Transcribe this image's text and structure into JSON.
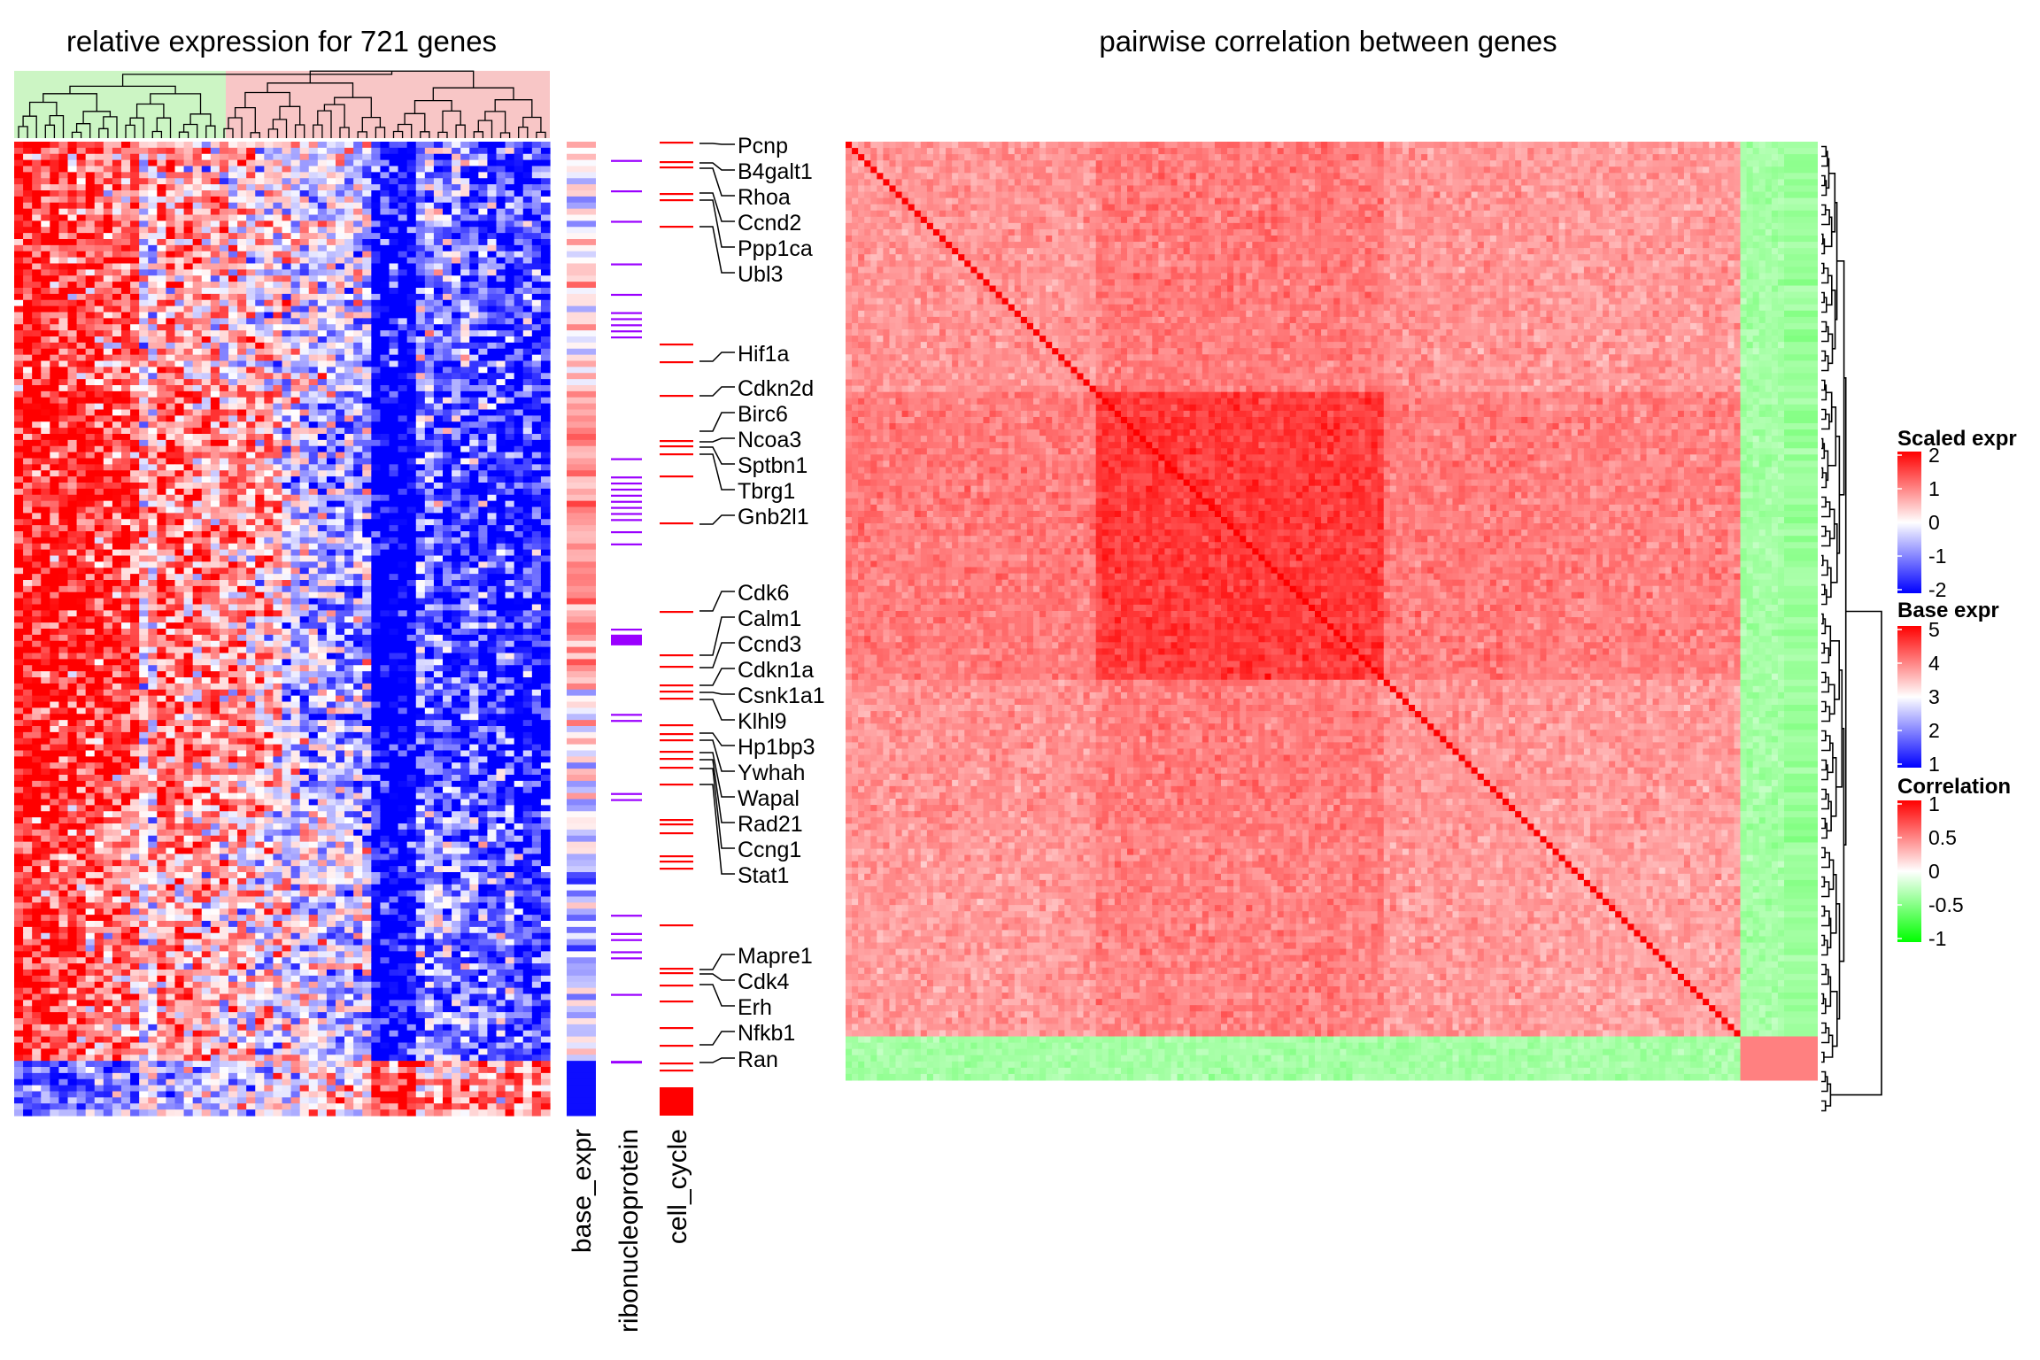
{
  "chart_data": [
    {
      "type": "heatmap",
      "title": "relative expression for 721 genes",
      "column_clusters": [
        {
          "color": "#ccf5c4"
        },
        {
          "color": "#f8c6c6"
        }
      ],
      "annotation_tracks": [
        {
          "name": "base_expr"
        },
        {
          "name": "ribonucleoprotein",
          "color": "#9a00ff"
        },
        {
          "name": "cell_cycle",
          "color": "#ff0000"
        }
      ],
      "gene_labels": [
        "Pcnp",
        "B4galt1",
        "Rhoa",
        "Ccnd2",
        "Ppp1ca",
        "Ubl3",
        "Hif1a",
        "Cdkn2d",
        "Birc6",
        "Ncoa3",
        "Sptbn1",
        "Tbrg1",
        "Gnb2l1",
        "Cdk6",
        "Calm1",
        "Ccnd3",
        "Cdkn1a",
        "Csnk1a1",
        "Klhl9",
        "Hp1bp3",
        "Ywhah",
        "Wapal",
        "Rad21",
        "Ccng1",
        "Stat1",
        "Mapre1",
        "Cdk4",
        "Erh",
        "Nfkb1",
        "Ran"
      ]
    },
    {
      "type": "heatmap",
      "title": "pairwise correlation between genes"
    }
  ],
  "legends": [
    {
      "title": "Scaled expr",
      "ticks": [
        "2",
        "1",
        "0",
        "-1",
        "-2"
      ],
      "colors": [
        "#ff0000",
        "#ffffff",
        "#0000ff"
      ]
    },
    {
      "title": "Base expr",
      "ticks": [
        "5",
        "4",
        "3",
        "2",
        "1"
      ],
      "colors": [
        "#ff0000",
        "#ffffff",
        "#0000ff"
      ]
    },
    {
      "title": "Correlation",
      "ticks": [
        "1",
        "0.5",
        "0",
        "-0.5",
        "-1"
      ],
      "colors": [
        "#ff0000",
        "#ffffff",
        "#00ff00"
      ]
    }
  ]
}
